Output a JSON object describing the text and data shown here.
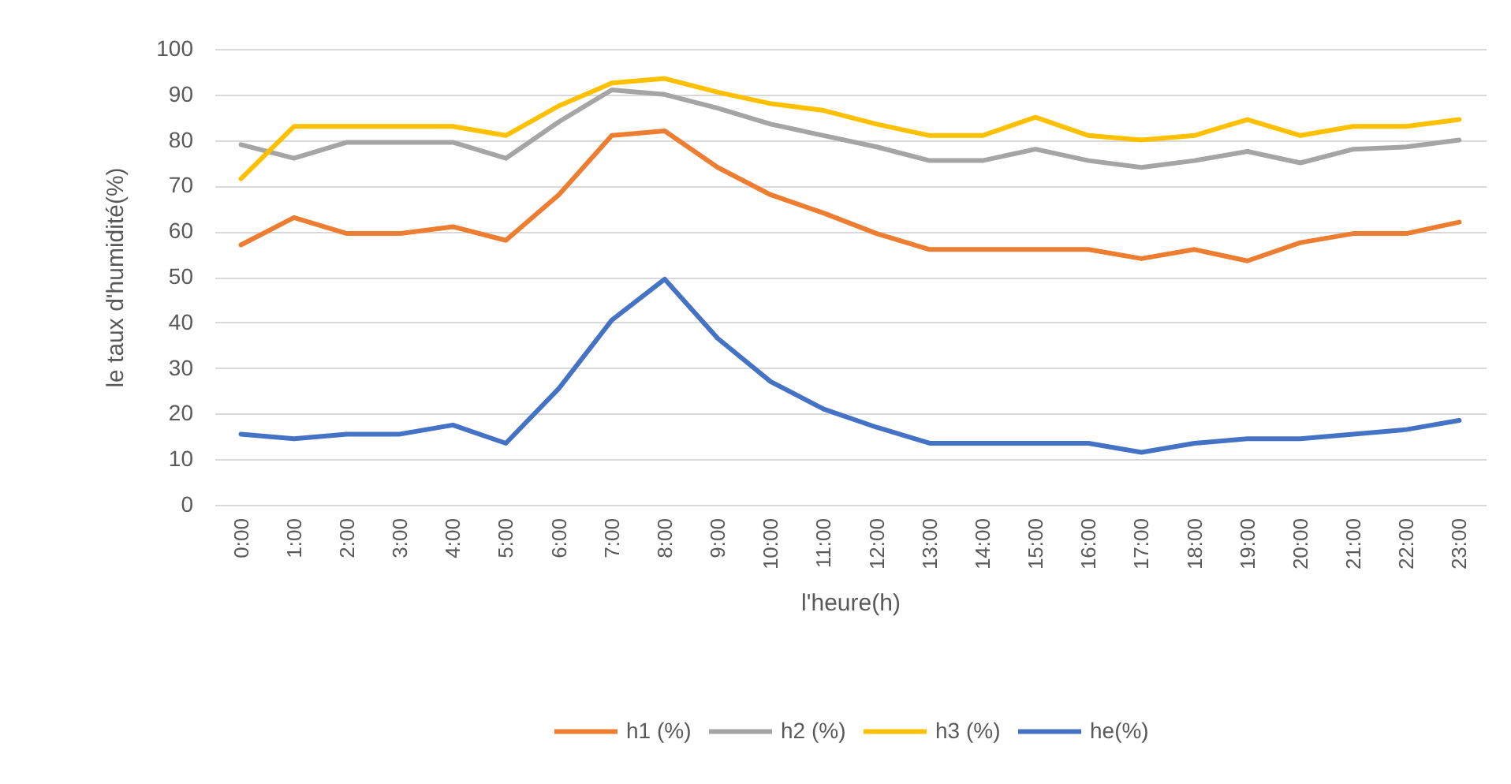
{
  "chart_data": {
    "type": "line",
    "xlabel": "l'heure(h)",
    "ylabel": "le taux d'humidité(%)",
    "categories": [
      "0:00",
      "1:00",
      "2:00",
      "3:00",
      "4:00",
      "5:00",
      "6:00",
      "7:00",
      "8:00",
      "9:00",
      "10:00",
      "11:00",
      "12:00",
      "13:00",
      "14:00",
      "15:00",
      "16:00",
      "17:00",
      "18:00",
      "19:00",
      "20:00",
      "21:00",
      "22:00",
      "23:00"
    ],
    "series": [
      {
        "name": "h1 (%)",
        "color": "#ed7d31",
        "values": [
          57,
          63,
          59.5,
          59.5,
          61,
          58,
          68,
          81,
          82,
          74,
          68,
          64,
          59.5,
          56,
          56,
          56,
          56,
          54,
          56,
          53.5,
          57.5,
          59.5,
          59.5,
          62
        ]
      },
      {
        "name": "h2 (%)",
        "color": "#a5a5a5",
        "values": [
          79,
          76,
          79.5,
          79.5,
          79.5,
          76,
          84,
          91,
          90,
          87,
          83.5,
          81,
          78.5,
          75.5,
          75.5,
          78,
          75.5,
          74,
          75.5,
          77.5,
          75,
          78,
          78.5,
          80
        ]
      },
      {
        "name": "h3 (%)",
        "color": "#ffc000",
        "values": [
          71.5,
          83,
          83,
          83,
          83,
          81,
          87.5,
          92.5,
          93.5,
          90.5,
          88,
          86.5,
          83.5,
          81,
          81,
          85,
          81,
          80,
          81,
          84.5,
          81,
          83,
          83,
          84.5
        ]
      },
      {
        "name": "he(%)",
        "color": "#4472c4",
        "values": [
          15.5,
          14.5,
          15.5,
          15.5,
          17.5,
          13.5,
          25.5,
          40.5,
          49.5,
          36.5,
          27,
          21,
          17,
          13.5,
          13.5,
          13.5,
          13.5,
          11.5,
          13.5,
          14.5,
          14.5,
          15.5,
          16.5,
          18.5
        ]
      }
    ],
    "ylim": [
      0,
      100
    ],
    "yticks": [
      0,
      10,
      20,
      30,
      40,
      50,
      60,
      70,
      80,
      90,
      100
    ],
    "grid": "y",
    "legend": "bottom"
  }
}
